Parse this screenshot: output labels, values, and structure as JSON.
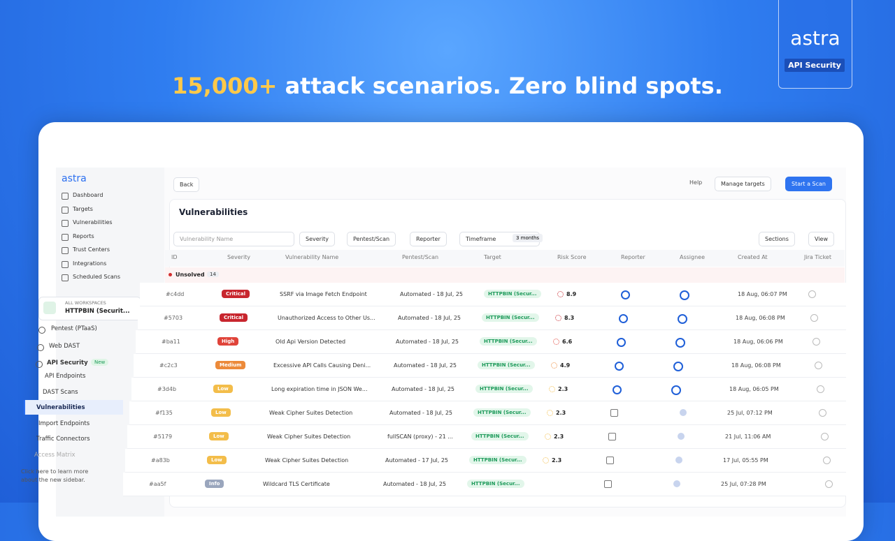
{
  "headline": {
    "highlight": "15,000+",
    "text": "attack scenarios. Zero blind spots."
  },
  "brand": {
    "logo": "astra",
    "product": "API Security"
  },
  "sidebar": {
    "logo": "astra",
    "nav": [
      "Dashboard",
      "Targets",
      "Vulnerabilities",
      "Reports",
      "Trust Centers",
      "Integrations",
      "Scheduled Scans"
    ],
    "workspace": {
      "caption": "ALL WORKSPACES",
      "name": "HTTPBIN (Securit..."
    },
    "products": [
      {
        "label": "Pentest (PTaaS)"
      },
      {
        "label": "Web DAST"
      },
      {
        "label": "API Security",
        "badge": "New"
      }
    ],
    "sub_nav": [
      "API Endpoints",
      "DAST Scans",
      "Vulnerabilities",
      "Import Endpoints",
      "Traffic Connectors",
      "Access Matrix"
    ],
    "hint": "Click here to learn more about the new sidebar."
  },
  "toolbar": {
    "back": "Back",
    "help": "Help",
    "manage": "Manage targets",
    "start": "Start a Scan"
  },
  "page_title": "Vulnerabilities",
  "filters": {
    "search_placeholder": "Vulnerability Name",
    "buttons": [
      "Severity",
      "Pentest/Scan",
      "Reporter"
    ],
    "timeframe": "Timeframe",
    "timeframe_value": "3 months",
    "sections": "Sections",
    "view": "View"
  },
  "table": {
    "columns": [
      "ID",
      "Severity",
      "Vulnerability Name",
      "Pentest/Scan",
      "Target",
      "Risk Score",
      "Reporter",
      "Assignee",
      "Created At",
      "Jira Ticket"
    ],
    "group": {
      "label": "Unsolved",
      "count": 14
    },
    "rows": [
      {
        "id": "#c4dd",
        "severity": "Critical",
        "severity_color": "#c8262e",
        "name": "SSRF via Image Fetch Endpoint",
        "scan": "Automated - 18 Jul, 25",
        "target": "HTTPBIN (Secur...",
        "risk_score": 8.9,
        "created": "18 Aug, 06:07 PM"
      },
      {
        "id": "#5703",
        "severity": "Critical",
        "severity_color": "#c8262e",
        "name": "Unauthorized Access to Other Us...",
        "scan": "Automated - 18 Jul, 25",
        "target": "HTTPBIN (Secur...",
        "risk_score": 8.3,
        "created": "18 Aug, 06:08 PM"
      },
      {
        "id": "#ba11",
        "severity": "High",
        "severity_color": "#e0443a",
        "name": "Old Api Version Detected",
        "scan": "Automated - 18 Jul, 25",
        "target": "HTTPBIN (Secur...",
        "risk_score": 6.6,
        "created": "18 Aug, 06:06 PM"
      },
      {
        "id": "#c2c3",
        "severity": "Medium",
        "severity_color": "#ec8a3a",
        "name": "Excessive API Calls Causing Deni...",
        "scan": "Automated - 18 Jul, 25",
        "target": "HTTPBIN (Secur...",
        "risk_score": 4.9,
        "created": "18 Aug, 06:08 PM"
      },
      {
        "id": "#3d4b",
        "severity": "Low",
        "severity_color": "#f3bd4a",
        "name": "Long expiration time in JSON We...",
        "scan": "Automated - 18 Jul, 25",
        "target": "HTTPBIN (Secur...",
        "risk_score": 2.3,
        "created": "18 Aug, 06:05 PM"
      },
      {
        "id": "#f135",
        "severity": "Low",
        "severity_color": "#f3bd4a",
        "name": "Weak Cipher Suites Detection",
        "scan": "Automated - 18 Jul, 25",
        "target": "HTTPBIN (Secur...",
        "risk_score": 2.3,
        "created": "25 Jul, 07:12 PM"
      },
      {
        "id": "#5179",
        "severity": "Low",
        "severity_color": "#f3bd4a",
        "name": "Weak Cipher Suites Detection",
        "scan": "fullSCAN (proxy) - 21 ...",
        "target": "HTTPBIN (Secur...",
        "risk_score": 2.3,
        "created": "21 Jul, 11:06 AM"
      },
      {
        "id": "#a83b",
        "severity": "Low",
        "severity_color": "#f3bd4a",
        "name": "Weak Cipher Suites Detection",
        "scan": "Automated - 17 Jul, 25",
        "target": "HTTPBIN (Secur...",
        "risk_score": 2.3,
        "created": "17 Jul, 05:55 PM"
      },
      {
        "id": "#aa5f",
        "severity": "Info",
        "severity_color": "#9aa6bd",
        "name": "Wildcard TLS Certificate",
        "scan": "Automated - 18 Jul, 25",
        "target": "HTTPBIN (Secur...",
        "risk_score": null,
        "created": "25 Jul, 07:28 PM"
      }
    ]
  }
}
